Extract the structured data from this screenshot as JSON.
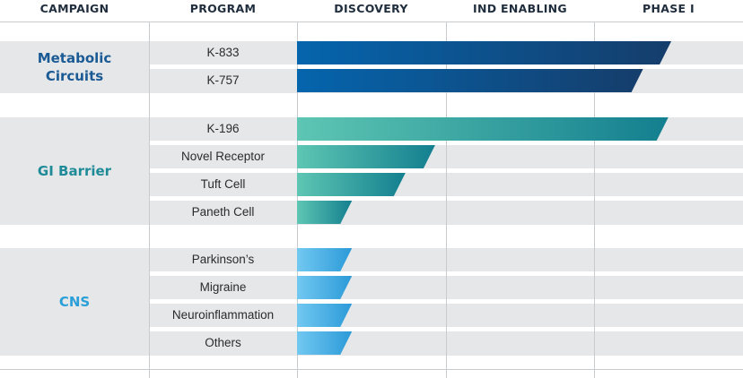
{
  "chart_data": {
    "type": "bar",
    "title": "",
    "stages": [
      "DISCOVERY",
      "IND ENABLING",
      "PHASE I"
    ],
    "headers": {
      "campaign": "CAMPAIGN",
      "program": "PROGRAM",
      "stages": [
        "DISCOVERY",
        "IND ENABLING",
        "PHASE I"
      ]
    },
    "value_unit": "stage progress (1.0 = one full stage column)",
    "groups": [
      {
        "name": "Metabolic Circuits",
        "name_lines": [
          "Metabolic",
          "Circuits"
        ],
        "color": "#1a5a95",
        "gradient": [
          "#0565ad",
          "#153d6b"
        ],
        "programs": [
          {
            "name": "K-833",
            "progress": 2.52
          },
          {
            "name": "K-757",
            "progress": 2.33
          }
        ]
      },
      {
        "name": "GI Barrier",
        "name_lines": [
          "GI Barrier"
        ],
        "color": "#1f8b99",
        "gradient": [
          "#5ec6b3",
          "#137f8f"
        ],
        "programs": [
          {
            "name": "K-196",
            "progress": 2.5
          },
          {
            "name": "Novel Receptor",
            "progress": 0.93
          },
          {
            "name": "Tuft Cell",
            "progress": 0.73
          },
          {
            "name": "Paneth Cell",
            "progress": 0.37
          }
        ]
      },
      {
        "name": "CNS",
        "name_lines": [
          "CNS"
        ],
        "color": "#2a9fd8",
        "gradient": [
          "#72c8f1",
          "#2b9ad8"
        ],
        "programs": [
          {
            "name": "Parkinson’s",
            "progress": 0.37
          },
          {
            "name": "Migraine",
            "progress": 0.37
          },
          {
            "name": "Neuroinflammation",
            "progress": 0.37
          },
          {
            "name": "Others",
            "progress": 0.37
          }
        ]
      }
    ]
  }
}
